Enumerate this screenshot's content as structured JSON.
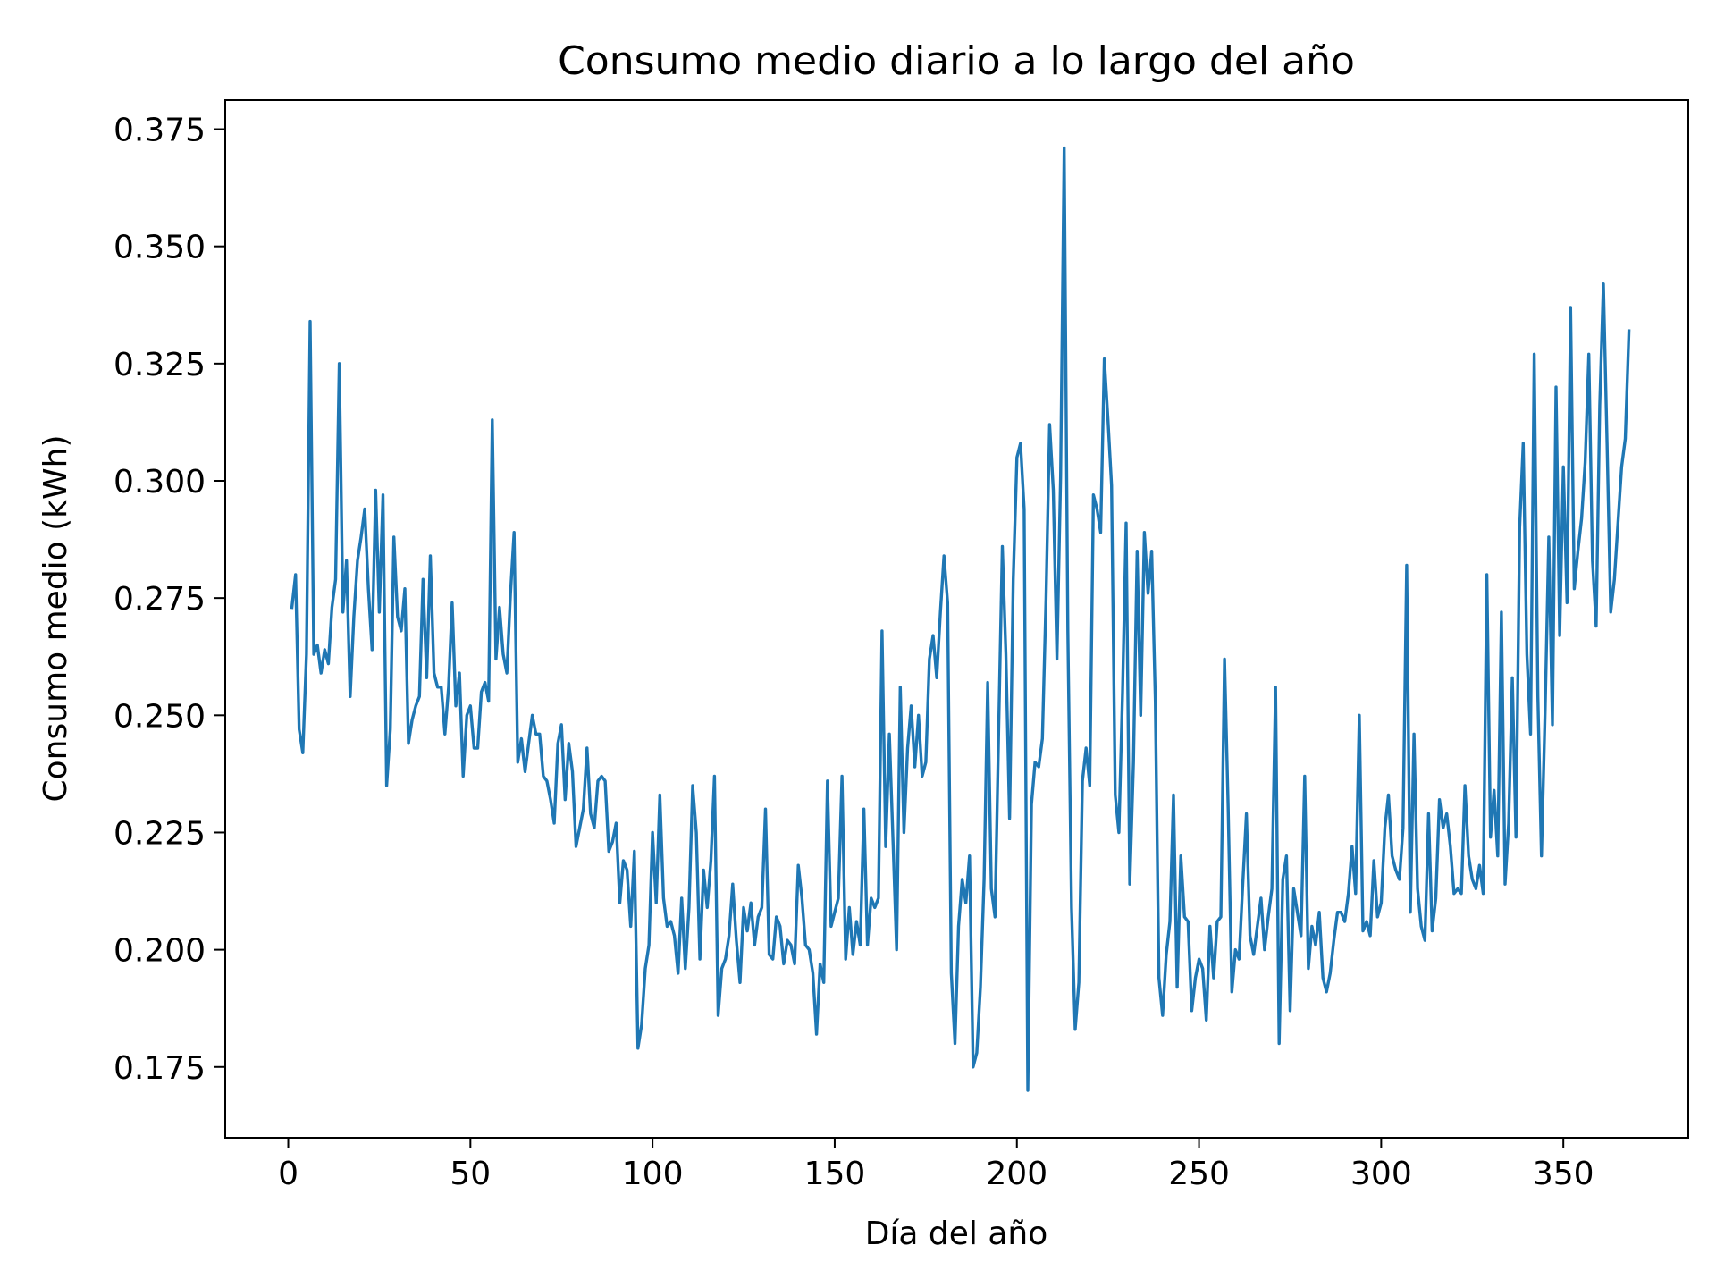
{
  "chart_data": {
    "type": "line",
    "title": "Consumo medio diario a lo largo del año",
    "xlabel": "Día del año",
    "ylabel": "Consumo medio (kWh)",
    "xlim": [
      -17.3,
      384.3
    ],
    "ylim": [
      0.1599,
      0.3812
    ],
    "xticks": [
      0,
      50,
      100,
      150,
      200,
      250,
      300,
      350
    ],
    "xtick_labels": [
      "0",
      "50",
      "100",
      "150",
      "200",
      "250",
      "300",
      "350"
    ],
    "yticks": [
      0.175,
      0.2,
      0.225,
      0.25,
      0.275,
      0.3,
      0.325,
      0.35,
      0.375
    ],
    "ytick_labels": [
      "0.175",
      "0.200",
      "0.225",
      "0.250",
      "0.275",
      "0.300",
      "0.325",
      "0.350",
      "0.375"
    ],
    "grid": false,
    "color": "#1f77b4",
    "series": [
      {
        "x_start": 1,
        "x_step": 1,
        "values": [
          0.273,
          0.28,
          0.247,
          0.242,
          0.263,
          0.334,
          0.263,
          0.265,
          0.259,
          0.264,
          0.261,
          0.273,
          0.279,
          0.325,
          0.272,
          0.283,
          0.254,
          0.271,
          0.283,
          0.288,
          0.294,
          0.277,
          0.264,
          0.298,
          0.272,
          0.297,
          0.235,
          0.247,
          0.288,
          0.271,
          0.268,
          0.277,
          0.244,
          0.249,
          0.252,
          0.254,
          0.279,
          0.258,
          0.284,
          0.259,
          0.256,
          0.256,
          0.246,
          0.256,
          0.274,
          0.252,
          0.259,
          0.237,
          0.25,
          0.252,
          0.243,
          0.243,
          0.255,
          0.257,
          0.253,
          0.313,
          0.262,
          0.273,
          0.263,
          0.259,
          0.276,
          0.289,
          0.24,
          0.245,
          0.238,
          0.244,
          0.25,
          0.246,
          0.246,
          0.237,
          0.236,
          0.232,
          0.227,
          0.244,
          0.248,
          0.232,
          0.244,
          0.238,
          0.222,
          0.226,
          0.23,
          0.243,
          0.229,
          0.226,
          0.236,
          0.237,
          0.236,
          0.221,
          0.223,
          0.227,
          0.21,
          0.219,
          0.217,
          0.205,
          0.221,
          0.179,
          0.184,
          0.196,
          0.201,
          0.225,
          0.21,
          0.233,
          0.211,
          0.205,
          0.206,
          0.203,
          0.195,
          0.211,
          0.196,
          0.209,
          0.235,
          0.225,
          0.198,
          0.217,
          0.209,
          0.219,
          0.237,
          0.186,
          0.196,
          0.198,
          0.203,
          0.214,
          0.202,
          0.193,
          0.209,
          0.204,
          0.21,
          0.201,
          0.207,
          0.209,
          0.23,
          0.199,
          0.198,
          0.207,
          0.205,
          0.197,
          0.202,
          0.201,
          0.197,
          0.218,
          0.211,
          0.201,
          0.2,
          0.195,
          0.182,
          0.197,
          0.193,
          0.236,
          0.205,
          0.208,
          0.211,
          0.237,
          0.198,
          0.209,
          0.199,
          0.206,
          0.201,
          0.23,
          0.201,
          0.211,
          0.209,
          0.211,
          0.268,
          0.222,
          0.246,
          0.223,
          0.2,
          0.256,
          0.225,
          0.243,
          0.252,
          0.239,
          0.25,
          0.237,
          0.24,
          0.262,
          0.267,
          0.258,
          0.272,
          0.284,
          0.274,
          0.195,
          0.18,
          0.205,
          0.215,
          0.21,
          0.22,
          0.175,
          0.178,
          0.192,
          0.215,
          0.257,
          0.213,
          0.207,
          0.247,
          0.286,
          0.263,
          0.228,
          0.279,
          0.305,
          0.308,
          0.294,
          0.17,
          0.231,
          0.24,
          0.239,
          0.245,
          0.275,
          0.312,
          0.298,
          0.262,
          0.301,
          0.371,
          0.268,
          0.209,
          0.183,
          0.193,
          0.236,
          0.243,
          0.235,
          0.297,
          0.294,
          0.289,
          0.326,
          0.313,
          0.299,
          0.233,
          0.225,
          0.255,
          0.291,
          0.214,
          0.24,
          0.285,
          0.25,
          0.289,
          0.276,
          0.285,
          0.253,
          0.194,
          0.186,
          0.199,
          0.206,
          0.233,
          0.192,
          0.22,
          0.207,
          0.206,
          0.187,
          0.194,
          0.198,
          0.196,
          0.185,
          0.205,
          0.194,
          0.206,
          0.207,
          0.262,
          0.23,
          0.191,
          0.2,
          0.198,
          0.214,
          0.229,
          0.203,
          0.199,
          0.205,
          0.211,
          0.2,
          0.207,
          0.213,
          0.256,
          0.18,
          0.215,
          0.22,
          0.187,
          0.213,
          0.208,
          0.203,
          0.237,
          0.196,
          0.205,
          0.201,
          0.208,
          0.194,
          0.191,
          0.195,
          0.202,
          0.208,
          0.208,
          0.206,
          0.212,
          0.222,
          0.212,
          0.25,
          0.204,
          0.206,
          0.203,
          0.219,
          0.207,
          0.21,
          0.226,
          0.233,
          0.22,
          0.217,
          0.215,
          0.226,
          0.282,
          0.208,
          0.246,
          0.213,
          0.205,
          0.202,
          0.229,
          0.204,
          0.211,
          0.232,
          0.226,
          0.229,
          0.222,
          0.212,
          0.213,
          0.212,
          0.235,
          0.22,
          0.215,
          0.213,
          0.218,
          0.212,
          0.28,
          0.224,
          0.234,
          0.22,
          0.272,
          0.214,
          0.227,
          0.258,
          0.224,
          0.29,
          0.308,
          0.263,
          0.246,
          0.327,
          0.254,
          0.22,
          0.251,
          0.288,
          0.248,
          0.32,
          0.267,
          0.303,
          0.274,
          0.337,
          0.277,
          0.285,
          0.292,
          0.304,
          0.327,
          0.283,
          0.269,
          0.316,
          0.342,
          0.308,
          0.272,
          0.279,
          0.291,
          0.303,
          0.309,
          0.332
        ]
      }
    ]
  }
}
